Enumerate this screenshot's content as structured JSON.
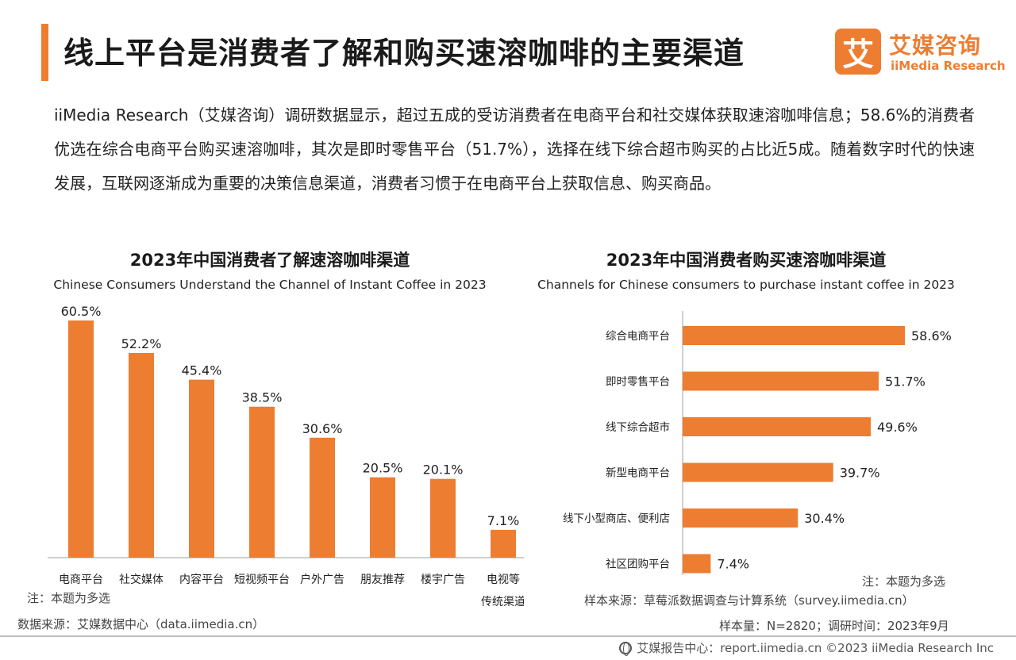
{
  "header": {
    "title": "线上平台是消费者了解和购买速溶咖啡的主要渠道",
    "accent_color": "#ed7d31"
  },
  "logo": {
    "mark": "艾",
    "name_cn": "艾媒咨询",
    "name_en": "iiMedia Research"
  },
  "summary": "iiMedia Research（艾媒咨询）调研数据显示，超过五成的受访消费者在电商平台和社交媒体获取速溶咖啡信息；58.6%的消费者优选在综合电商平台购买速溶咖啡，其次是即时零售平台（51.7%），选择在线下综合超市购买的占比近5成。随着数字时代的快速发展，互联网逐渐成为重要的决策信息渠道，消费者习惯于在电商平台上获取信息、购买商品。",
  "chart_data": [
    {
      "type": "bar",
      "orientation": "vertical",
      "title": "2023年中国消费者了解速溶咖啡渠道",
      "subtitle": "Chinese Consumers Understand the Channel of Instant Coffee in 2023",
      "categories": [
        "电商平台",
        "社交媒体",
        "内容平台",
        "短视频平台",
        "户外广告",
        "朋友推荐",
        "楼宇广告",
        "电视等\n传统渠道"
      ],
      "values": [
        60.5,
        52.2,
        45.4,
        38.5,
        30.6,
        20.5,
        20.1,
        7.1
      ],
      "data_labels": [
        "60.5%",
        "52.2%",
        "45.4%",
        "38.5%",
        "30.6%",
        "20.5%",
        "20.1%",
        "7.1%"
      ],
      "ylim": [
        0,
        60.5
      ],
      "color": "#ed7d31",
      "grid": false,
      "legend": "none"
    },
    {
      "type": "bar",
      "orientation": "horizontal",
      "title": "2023年中国消费者购买速溶咖啡渠道",
      "subtitle": "Channels for Chinese consumers to purchase instant coffee in 2023",
      "categories": [
        "综合电商平台",
        "即时零售平台",
        "线下综合超市",
        "新型电商平台",
        "线下小型商店、便利店",
        "社区团购平台"
      ],
      "values": [
        58.6,
        51.7,
        49.6,
        39.7,
        30.4,
        7.4
      ],
      "data_labels": [
        "58.6%",
        "51.7%",
        "49.6%",
        "39.7%",
        "30.4%",
        "7.4%"
      ],
      "xlim": [
        0,
        58.6
      ],
      "color": "#ed7d31",
      "grid": false,
      "legend": "none"
    }
  ],
  "notes": {
    "left_note": "注：本题为多选",
    "left_source": "数据来源：艾媒数据中心（data.iimedia.cn）",
    "right_note": "注：本题为多选",
    "right_source": "样本来源：草莓派数据调查与计算系统（survey.iimedia.cn）",
    "right_sample": "样本量：N=2820；调研时间：2023年9月"
  },
  "footer": {
    "text": "艾媒报告中心：report.iimedia.cn  ©2023  iiMedia Research  Inc"
  }
}
